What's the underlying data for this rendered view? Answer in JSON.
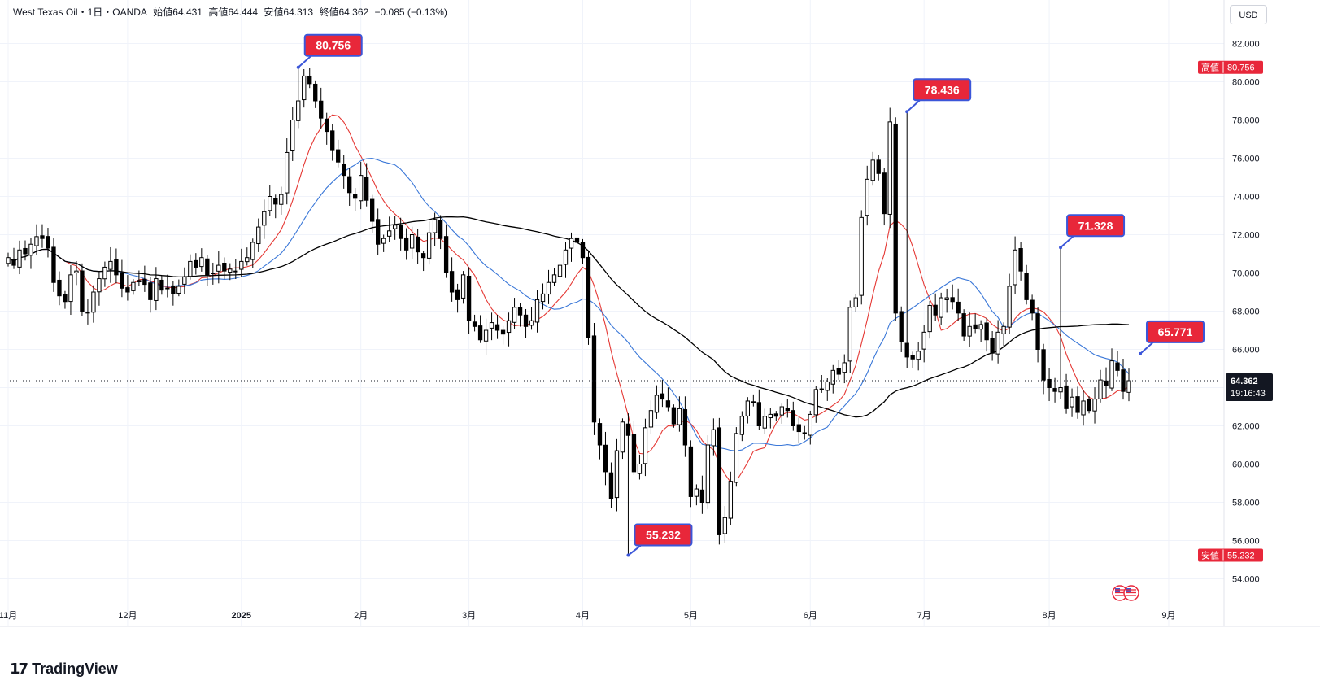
{
  "header": {
    "symbol": "West Texas Oil・1日・OANDA",
    "open": "始値64.431",
    "high": "高値64.444",
    "low": "安値64.313",
    "close": "終値64.362",
    "change": "−0.085 (−0.13%)"
  },
  "currency_button": "USD",
  "brand": {
    "mark": "17",
    "name": "TradingView"
  },
  "colors": {
    "up_body": "#ffffff",
    "down_body": "#000000",
    "candle_border": "#000000",
    "ma_short": "#e53935",
    "ma_mid": "#3b78d8",
    "ma_long": "#000000",
    "callout_fill": "#e8273a",
    "callout_border": "#3b56d9",
    "last_price_bg": "#131722",
    "grid": "#f0f3fa"
  },
  "chart_data": {
    "type": "candlestick",
    "title": "",
    "y_range": [
      53,
      83
    ],
    "y_ticks": [
      54,
      56,
      58,
      60,
      62,
      64,
      66,
      68,
      70,
      72,
      74,
      76,
      78,
      80,
      82
    ],
    "y_tick_labels": [
      "54.000",
      "56.000",
      "58.000",
      "60.000",
      "62.000",
      "64.000",
      "66.000",
      "68.000",
      "70.000",
      "72.000",
      "74.000",
      "76.000",
      "78.000",
      "80.000",
      "82.000"
    ],
    "x_ticks": [
      {
        "i": 0,
        "label": "11月"
      },
      {
        "i": 21,
        "label": "12月"
      },
      {
        "i": 41,
        "label": "2025"
      },
      {
        "i": 62,
        "label": "2月"
      },
      {
        "i": 81,
        "label": "3月"
      },
      {
        "i": 101,
        "label": "4月"
      },
      {
        "i": 120,
        "label": "5月"
      },
      {
        "i": 141,
        "label": "6月"
      },
      {
        "i": 161,
        "label": "7月"
      },
      {
        "i": 183,
        "label": "8月"
      },
      {
        "i": 204,
        "label": "9月"
      }
    ],
    "closes": [
      70.8,
      70.4,
      71.2,
      71.0,
      71.5,
      71.9,
      71.8,
      71.3,
      69.5,
      68.8,
      68.5,
      69.9,
      70.1,
      68.0,
      67.9,
      69.0,
      69.7,
      70.3,
      70.6,
      69.9,
      69.2,
      69.0,
      69.5,
      69.6,
      69.4,
      68.6,
      69.7,
      69.1,
      69.2,
      68.9,
      69.3,
      69.8,
      70.6,
      70.3,
      70.8,
      69.9,
      70.0,
      70.4,
      70.1,
      70.2,
      70.1,
      70.6,
      70.8,
      71.6,
      72.4,
      73.2,
      74.0,
      73.6,
      74.1,
      76.3,
      78.0,
      79.0,
      80.3,
      79.9,
      79.0,
      78.1,
      77.4,
      76.4,
      75.8,
      75.1,
      74.2,
      73.9,
      75.1,
      73.8,
      72.7,
      71.5,
      71.8,
      72.2,
      72.5,
      71.8,
      71.2,
      72.0,
      71.1,
      70.8,
      72.1,
      72.8,
      71.8,
      70.0,
      69.0,
      68.6,
      69.9,
      67.5,
      67.2,
      66.5,
      67.0,
      67.4,
      67.0,
      66.8,
      67.5,
      68.2,
      67.8,
      67.2,
      67.5,
      68.6,
      68.9,
      69.5,
      69.9,
      70.4,
      71.2,
      71.8,
      71.6,
      70.8,
      66.6,
      62.2,
      61.0,
      59.6,
      58.2,
      60.7,
      62.2,
      61.5,
      59.6,
      60.0,
      61.9,
      62.8,
      63.6,
      63.4,
      63.0,
      62.1,
      62.9,
      61.0,
      58.3,
      58.7,
      58.0,
      61.0,
      61.8,
      56.3,
      57.2,
      59.1,
      61.6,
      62.5,
      63.3,
      63.2,
      62.0,
      62.5,
      62.6,
      62.5,
      63.0,
      62.8,
      62.0,
      61.7,
      61.6,
      62.6,
      63.9,
      63.9,
      64.3,
      64.9,
      64.7,
      65.3,
      68.2,
      68.7,
      72.9,
      74.9,
      75.9,
      75.2,
      73.1,
      77.9,
      67.9,
      66.4,
      65.6,
      65.5,
      65.9,
      66.9,
      68.3,
      67.8,
      68.7,
      68.7,
      68.5,
      67.9,
      66.7,
      67.2,
      67.1,
      67.3,
      66.5,
      65.8,
      66.9,
      67.2,
      69.3,
      71.2,
      70.1,
      68.6,
      67.9,
      66.0,
      64.4,
      64.0,
      63.8,
      64.0,
      62.9,
      63.5,
      62.7,
      63.3,
      62.8,
      63.4,
      64.4,
      64.1,
      65.4,
      64.9,
      63.8,
      64.362
    ],
    "callouts": [
      {
        "i": 51,
        "value": 80.756,
        "label": "80.756"
      },
      {
        "i": 158,
        "value": 78.436,
        "label": "78.436"
      },
      {
        "i": 109,
        "value": 55.232,
        "label": "55.232"
      },
      {
        "i": 185,
        "value": 71.328,
        "label": "71.328"
      },
      {
        "i": 199,
        "value": 65.771,
        "label": "65.771"
      }
    ],
    "axis_badges": {
      "high": {
        "value": 80.756,
        "tag": "高値",
        "label": "80.756"
      },
      "low": {
        "value": 55.232,
        "tag": "安値",
        "label": "55.232"
      },
      "last": {
        "value": 64.362,
        "label": "64.362",
        "countdown": "19:16:43"
      }
    },
    "moving_averages": [
      {
        "period": 9
      },
      {
        "period": 20
      },
      {
        "period": 50
      }
    ],
    "grid": true
  }
}
